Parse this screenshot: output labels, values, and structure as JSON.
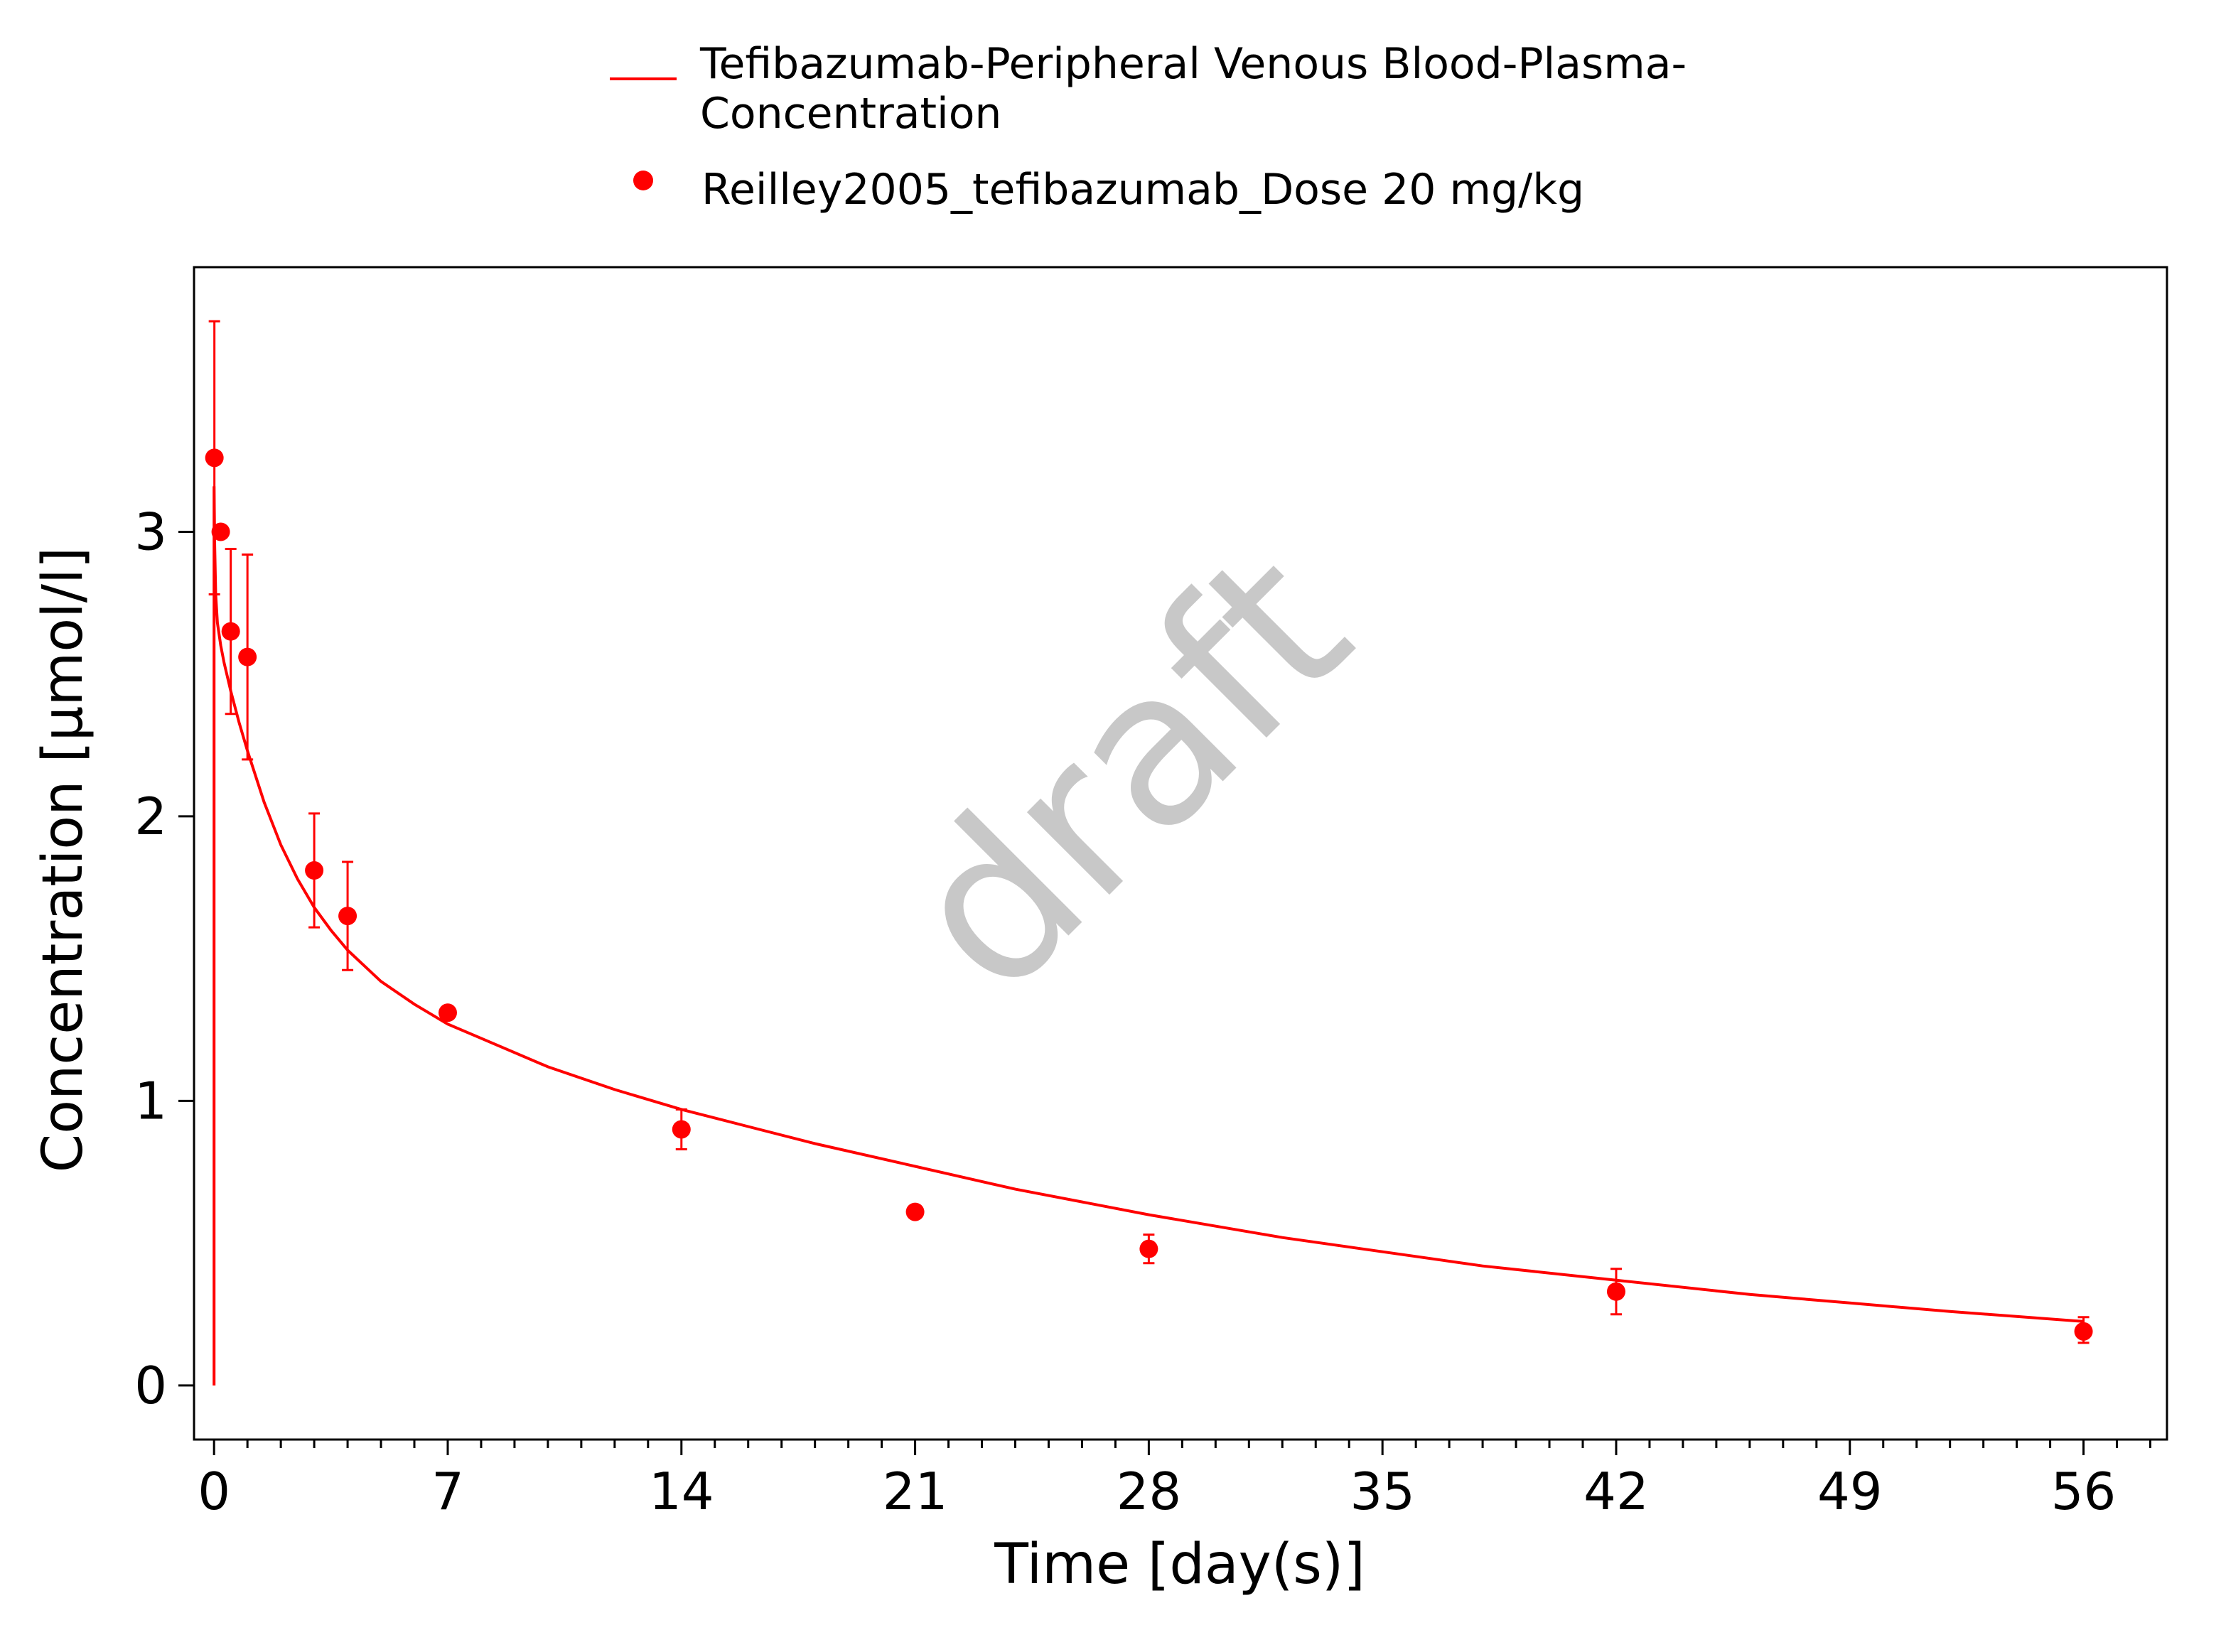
{
  "chart_data": {
    "type": "scatter",
    "xlabel": "Time [day(s)]",
    "ylabel": "Concentration [µmol/l]",
    "xlim": [
      -0.6,
      58.5
    ],
    "ylim": [
      -0.19,
      3.93
    ],
    "x_ticks": [
      0,
      7,
      14,
      21,
      28,
      35,
      42,
      49,
      56
    ],
    "y_ticks": [
      0,
      1,
      2,
      3
    ],
    "x_minor_step": 1,
    "grid": false,
    "legend_position": "top",
    "watermark": "draft",
    "color": "#ff0000",
    "legend": [
      {
        "label_line1": "Tefibazumab-Peripheral Venous Blood-Plasma-",
        "label_line2": "Concentration",
        "marker": "line"
      },
      {
        "label_line1": "Reilley2005_tefibazumab_Dose 20 mg/kg",
        "label_line2": "",
        "marker": "dot"
      }
    ],
    "series": [
      {
        "name": "Tefibazumab-Peripheral Venous Blood-Plasma-Concentration",
        "kind": "line",
        "x": [
          0,
          0.001,
          0.02,
          0.05,
          0.1,
          0.2,
          0.3,
          0.5,
          0.75,
          1,
          1.5,
          2,
          2.5,
          3,
          3.5,
          4,
          5,
          6,
          7,
          8,
          10,
          12,
          14,
          16,
          18,
          21,
          24,
          28,
          32,
          35,
          38,
          42,
          46,
          49,
          52,
          56
        ],
        "y": [
          0,
          3.16,
          2.95,
          2.78,
          2.68,
          2.6,
          2.54,
          2.44,
          2.33,
          2.23,
          2.05,
          1.9,
          1.78,
          1.68,
          1.6,
          1.53,
          1.42,
          1.34,
          1.27,
          1.22,
          1.12,
          1.04,
          0.97,
          0.91,
          0.85,
          0.77,
          0.69,
          0.6,
          0.52,
          0.47,
          0.42,
          0.37,
          0.32,
          0.29,
          0.26,
          0.225
        ]
      },
      {
        "name": "Reilley2005_tefibazumab_Dose 20 mg/kg",
        "kind": "points",
        "x": [
          0.01,
          0.2,
          0.5,
          1,
          3,
          4,
          7,
          14,
          21,
          28,
          42,
          56
        ],
        "y": [
          3.26,
          3.0,
          2.65,
          2.56,
          1.81,
          1.65,
          1.31,
          0.9,
          0.61,
          0.48,
          0.33,
          0.19
        ],
        "err_low": [
          0.48,
          null,
          0.29,
          0.36,
          0.2,
          0.19,
          null,
          0.07,
          null,
          0.05,
          0.08,
          0.04
        ],
        "err_high": [
          0.48,
          null,
          0.29,
          0.36,
          0.2,
          0.19,
          null,
          0.07,
          null,
          0.05,
          0.08,
          0.05
        ]
      }
    ]
  }
}
